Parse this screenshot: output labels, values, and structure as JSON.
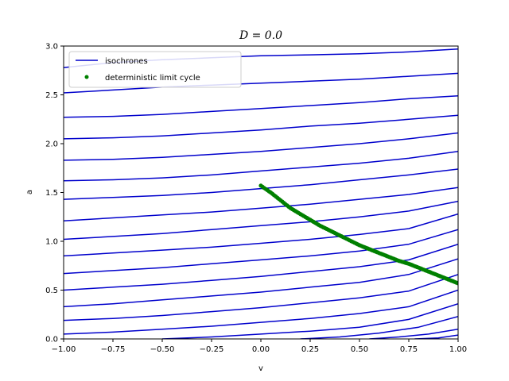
{
  "chart_data": {
    "type": "line",
    "title": "D = 0.0",
    "xlabel": "v",
    "ylabel": "a",
    "xlim": [
      -1.0,
      1.0
    ],
    "ylim": [
      0.0,
      3.0
    ],
    "xticks": [
      "−1.00",
      "−0.75",
      "−0.50",
      "−0.25",
      "0.00",
      "0.25",
      "0.50",
      "0.75",
      "1.00"
    ],
    "xtick_values": [
      -1.0,
      -0.75,
      -0.5,
      -0.25,
      0.0,
      0.25,
      0.5,
      0.75,
      1.0
    ],
    "yticks": [
      "0.0",
      "0.5",
      "1.0",
      "1.5",
      "2.0",
      "2.5",
      "3.0"
    ],
    "ytick_values": [
      0.0,
      0.5,
      1.0,
      1.5,
      2.0,
      2.5,
      3.0
    ],
    "grid": false,
    "legend_position": "top-left",
    "legend": [
      {
        "label": "isochrones",
        "color": "#0000cc",
        "marker": "line"
      },
      {
        "label": "deterministic limit cycle",
        "color": "#008000",
        "marker": "dot"
      }
    ],
    "series": [
      {
        "color": "#0000cc",
        "x": [
          -1.0,
          -0.75,
          -0.5,
          -0.25,
          0.0,
          0.25,
          0.5,
          0.75,
          1.0
        ],
        "y": [
          2.78,
          2.83,
          2.86,
          2.88,
          2.9,
          2.91,
          2.92,
          2.94,
          2.97
        ]
      },
      {
        "color": "#0000cc",
        "x": [
          -1.0,
          -0.75,
          -0.5,
          -0.25,
          0.0,
          0.25,
          0.5,
          0.75,
          1.0
        ],
        "y": [
          2.52,
          2.55,
          2.58,
          2.6,
          2.62,
          2.64,
          2.66,
          2.69,
          2.72
        ]
      },
      {
        "color": "#0000cc",
        "x": [
          -1.0,
          -0.75,
          -0.5,
          -0.25,
          0.0,
          0.25,
          0.5,
          0.75,
          1.0
        ],
        "y": [
          2.27,
          2.28,
          2.3,
          2.33,
          2.36,
          2.39,
          2.42,
          2.46,
          2.49
        ]
      },
      {
        "color": "#0000cc",
        "x": [
          -1.0,
          -0.75,
          -0.5,
          -0.25,
          0.0,
          0.25,
          0.5,
          0.75,
          1.0
        ],
        "y": [
          2.05,
          2.06,
          2.08,
          2.11,
          2.14,
          2.18,
          2.21,
          2.25,
          2.29
        ]
      },
      {
        "color": "#0000cc",
        "x": [
          -1.0,
          -0.75,
          -0.5,
          -0.25,
          0.0,
          0.25,
          0.5,
          0.75,
          1.0
        ],
        "y": [
          1.83,
          1.84,
          1.86,
          1.89,
          1.92,
          1.96,
          2.0,
          2.05,
          2.11
        ]
      },
      {
        "color": "#0000cc",
        "x": [
          -1.0,
          -0.75,
          -0.5,
          -0.25,
          0.0,
          0.25,
          0.5,
          0.75,
          1.0
        ],
        "y": [
          1.62,
          1.63,
          1.65,
          1.68,
          1.72,
          1.76,
          1.8,
          1.85,
          1.92
        ]
      },
      {
        "color": "#0000cc",
        "x": [
          -1.0,
          -0.75,
          -0.5,
          -0.25,
          0.0,
          0.25,
          0.5,
          0.75,
          1.0
        ],
        "y": [
          1.43,
          1.45,
          1.47,
          1.5,
          1.54,
          1.58,
          1.63,
          1.68,
          1.74
        ]
      },
      {
        "color": "#0000cc",
        "x": [
          -1.0,
          -0.75,
          -0.5,
          -0.25,
          0.0,
          0.25,
          0.5,
          0.75,
          1.0
        ],
        "y": [
          1.21,
          1.24,
          1.27,
          1.3,
          1.34,
          1.38,
          1.43,
          1.48,
          1.55
        ]
      },
      {
        "color": "#0000cc",
        "x": [
          -1.0,
          -0.75,
          -0.5,
          -0.25,
          0.0,
          0.25,
          0.5,
          0.75,
          1.0
        ],
        "y": [
          1.02,
          1.05,
          1.08,
          1.12,
          1.16,
          1.2,
          1.25,
          1.31,
          1.41
        ]
      },
      {
        "color": "#0000cc",
        "x": [
          -1.0,
          -0.75,
          -0.5,
          -0.25,
          0.0,
          0.25,
          0.5,
          0.75,
          1.0
        ],
        "y": [
          0.85,
          0.88,
          0.91,
          0.94,
          0.98,
          1.02,
          1.07,
          1.13,
          1.28
        ]
      },
      {
        "color": "#0000cc",
        "x": [
          -1.0,
          -0.75,
          -0.5,
          -0.25,
          0.0,
          0.25,
          0.5,
          0.75,
          1.0
        ],
        "y": [
          0.67,
          0.7,
          0.73,
          0.77,
          0.81,
          0.85,
          0.9,
          0.97,
          1.12
        ]
      },
      {
        "color": "#0000cc",
        "x": [
          -1.0,
          -0.75,
          -0.5,
          -0.25,
          0.0,
          0.25,
          0.5,
          0.75,
          1.0
        ],
        "y": [
          0.5,
          0.53,
          0.56,
          0.6,
          0.64,
          0.69,
          0.74,
          0.81,
          0.97
        ]
      },
      {
        "color": "#0000cc",
        "x": [
          -1.0,
          -0.75,
          -0.5,
          -0.25,
          0.0,
          0.25,
          0.5,
          0.75,
          1.0
        ],
        "y": [
          0.33,
          0.36,
          0.4,
          0.44,
          0.48,
          0.53,
          0.58,
          0.66,
          0.82
        ]
      },
      {
        "color": "#0000cc",
        "x": [
          -1.0,
          -0.75,
          -0.5,
          -0.25,
          0.0,
          0.25,
          0.5,
          0.75,
          1.0
        ],
        "y": [
          0.19,
          0.21,
          0.24,
          0.28,
          0.32,
          0.37,
          0.42,
          0.49,
          0.66
        ]
      },
      {
        "color": "#0000cc",
        "x": [
          -1.0,
          -0.75,
          -0.5,
          -0.25,
          0.0,
          0.25,
          0.5,
          0.75,
          1.0
        ],
        "y": [
          0.05,
          0.07,
          0.1,
          0.13,
          0.17,
          0.21,
          0.26,
          0.33,
          0.5
        ]
      },
      {
        "color": "#0000cc",
        "x": [
          -0.5,
          -0.25,
          0.0,
          0.25,
          0.5,
          0.75,
          1.0
        ],
        "y": [
          0.0,
          0.02,
          0.05,
          0.08,
          0.12,
          0.2,
          0.36
        ]
      },
      {
        "color": "#0000cc",
        "x": [
          0.2,
          0.4,
          0.6,
          0.8,
          1.0
        ],
        "y": [
          0.0,
          0.02,
          0.06,
          0.12,
          0.23
        ]
      },
      {
        "color": "#0000cc",
        "x": [
          0.55,
          0.7,
          0.85,
          1.0
        ],
        "y": [
          0.0,
          0.02,
          0.05,
          0.1
        ]
      },
      {
        "color": "#0000cc",
        "x": [
          0.78,
          0.9,
          1.0
        ],
        "y": [
          0.0,
          0.01,
          0.04
        ]
      }
    ],
    "limit_cycle": {
      "color": "#008000",
      "x": [
        0.0,
        0.05,
        0.1,
        0.15,
        0.2,
        0.25,
        0.3,
        0.35,
        0.4,
        0.45,
        0.5,
        0.55,
        0.6,
        0.65,
        0.7,
        0.75,
        0.8,
        0.85,
        0.9,
        0.95,
        1.0
      ],
      "y": [
        1.57,
        1.5,
        1.42,
        1.34,
        1.28,
        1.22,
        1.16,
        1.11,
        1.06,
        1.01,
        0.96,
        0.92,
        0.88,
        0.84,
        0.8,
        0.77,
        0.73,
        0.69,
        0.65,
        0.61,
        0.57
      ]
    }
  }
}
